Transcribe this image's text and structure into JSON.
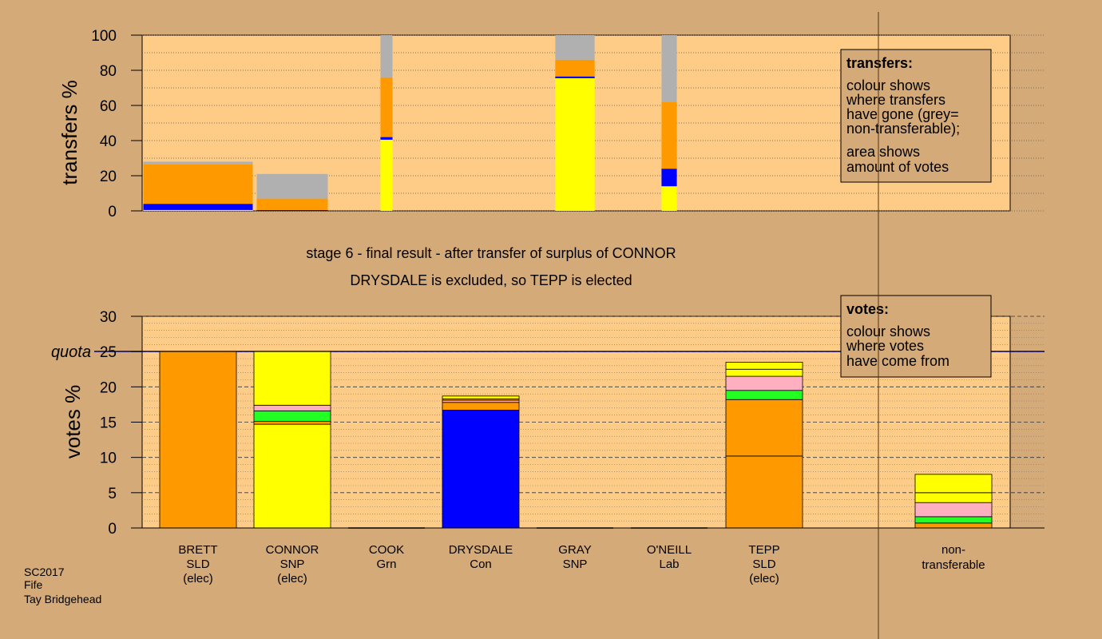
{
  "chart_data": [
    {
      "type": "bar",
      "stacked": true,
      "title": "transfers",
      "ylabel": "transfers %",
      "ylim": [
        0,
        100
      ],
      "yticks": [
        0,
        20,
        40,
        60,
        80,
        100
      ],
      "legend_placement": "top-right",
      "legend": {
        "title": "transfers:",
        "lines": [
          "colour shows",
          "where transfers",
          "have gone (grey=",
          "non-transferable);",
          "area shows",
          "amount of votes"
        ]
      },
      "bars": [
        {
          "candidate": "BRETT",
          "width_share": 1.0,
          "segments": [
            {
              "color": "#ffff00",
              "value": 0.5
            },
            {
              "color": "#0000ff",
              "value": 3.5
            },
            {
              "color": "#ff9900",
              "value": 22.5
            },
            {
              "color": "#b0b0b0",
              "value": 1.5
            }
          ]
        },
        {
          "candidate": "CONNOR",
          "width_share": 0.65,
          "segments": [
            {
              "color": "#0000ff",
              "value": 0.5
            },
            {
              "color": "#ff9900",
              "value": 6.5
            },
            {
              "color": "#b0b0b0",
              "value": 14.0
            }
          ]
        },
        {
          "candidate": "COOK",
          "width_share": 0.11,
          "segments": [
            {
              "color": "#ffff00",
              "value": 40.5
            },
            {
              "color": "#0000ff",
              "value": 1.5
            },
            {
              "color": "#ff9900",
              "value": 34.0
            },
            {
              "color": "#b0b0b0",
              "value": 24.0
            }
          ]
        },
        {
          "candidate": "GRAY",
          "width_share": 0.36,
          "segments": [
            {
              "color": "#ffff00",
              "value": 75.5
            },
            {
              "color": "#0000ff",
              "value": 1.0
            },
            {
              "color": "#ff9900",
              "value": 9.5
            },
            {
              "color": "#b0b0b0",
              "value": 14.0
            }
          ]
        },
        {
          "candidate": "O'NEILL",
          "width_share": 0.14,
          "segments": [
            {
              "color": "#ffff00",
              "value": 14.0
            },
            {
              "color": "#0000ff",
              "value": 10.0
            },
            {
              "color": "#ff9900",
              "value": 38.0
            },
            {
              "color": "#b0b0b0",
              "value": 38.0
            }
          ]
        }
      ]
    },
    {
      "type": "bar",
      "stacked": true,
      "title": "votes",
      "ylabel": "votes %",
      "ylim": [
        0,
        30
      ],
      "yticks": [
        0,
        5,
        10,
        15,
        20,
        25,
        30
      ],
      "quota": 25,
      "quota_label": "quota",
      "legend_placement": "top-right",
      "legend": {
        "title": "votes:",
        "lines": [
          "colour shows",
          "where votes",
          "have come from"
        ]
      },
      "categories": [
        "BRETT",
        "CONNOR",
        "COOK",
        "DRYSDALE",
        "GRAY",
        "O'NEILL",
        "TEPP",
        "non-transferable"
      ],
      "stacks": [
        {
          "segments": [
            {
              "color": "#ff9900",
              "value": 25.0
            }
          ]
        },
        {
          "segments": [
            {
              "color": "#ffff00",
              "value": 14.7
            },
            {
              "color": "#ff9900",
              "value": 0.4
            },
            {
              "color": "#22ff22",
              "value": 1.5
            },
            {
              "color": "#ffb0c0",
              "value": 0.8
            },
            {
              "color": "#ffff00",
              "value": 7.6
            }
          ]
        },
        {
          "segments": []
        },
        {
          "segments": [
            {
              "color": "#0000ff",
              "value": 16.7
            },
            {
              "color": "#ff9900",
              "value": 1.1
            },
            {
              "color": "#ffb0c0",
              "value": 0.3
            },
            {
              "color": "#ff9900",
              "value": 0.2
            },
            {
              "color": "#ffff00",
              "value": 0.4
            }
          ]
        },
        {
          "segments": []
        },
        {
          "segments": []
        },
        {
          "segments": [
            {
              "color": "#ff9900",
              "value": 10.2
            },
            {
              "color": "#ff9900",
              "value": 8.0
            },
            {
              "color": "#22ff22",
              "value": 1.3
            },
            {
              "color": "#ffb0c0",
              "value": 2.0
            },
            {
              "color": "#ffff00",
              "value": 1.0
            },
            {
              "color": "#ffff00",
              "value": 1.0
            }
          ]
        },
        {
          "segments": [
            {
              "color": "#ff9900",
              "value": 0.7
            },
            {
              "color": "#22ff22",
              "value": 0.9
            },
            {
              "color": "#ffb0c0",
              "value": 2.0
            },
            {
              "color": "#ffff00",
              "value": 1.4
            },
            {
              "color": "#ffff00",
              "value": 2.6
            }
          ]
        }
      ]
    }
  ],
  "candidates": [
    {
      "name": "BRETT",
      "party": "SLD",
      "status": "(elec)"
    },
    {
      "name": "CONNOR",
      "party": "SNP",
      "status": "(elec)"
    },
    {
      "name": "COOK",
      "party": "Grn",
      "status": ""
    },
    {
      "name": "DRYSDALE",
      "party": "Con",
      "status": ""
    },
    {
      "name": "GRAY",
      "party": "SNP",
      "status": ""
    },
    {
      "name": "O'NEILL",
      "party": "Lab",
      "status": ""
    },
    {
      "name": "TEPP",
      "party": "SLD",
      "status": "(elec)"
    }
  ],
  "nontransferable_label": [
    "non-",
    "transferable"
  ],
  "captions": {
    "line1": "stage 6 - final result - after transfer of surplus of CONNOR",
    "line2": "DRYSDALE is excluded, so TEPP is elected"
  },
  "footer": [
    "SC2017",
    "Fife",
    "Tay Bridgehead"
  ],
  "colors": {
    "background": "#d4aa78",
    "plot_fill": "#ffcc88",
    "orange": "#ff9900",
    "yellow": "#ffff00",
    "blue": "#0000ff",
    "green": "#22ff22",
    "pink": "#ffb0c0",
    "grey": "#b0b0b0"
  }
}
